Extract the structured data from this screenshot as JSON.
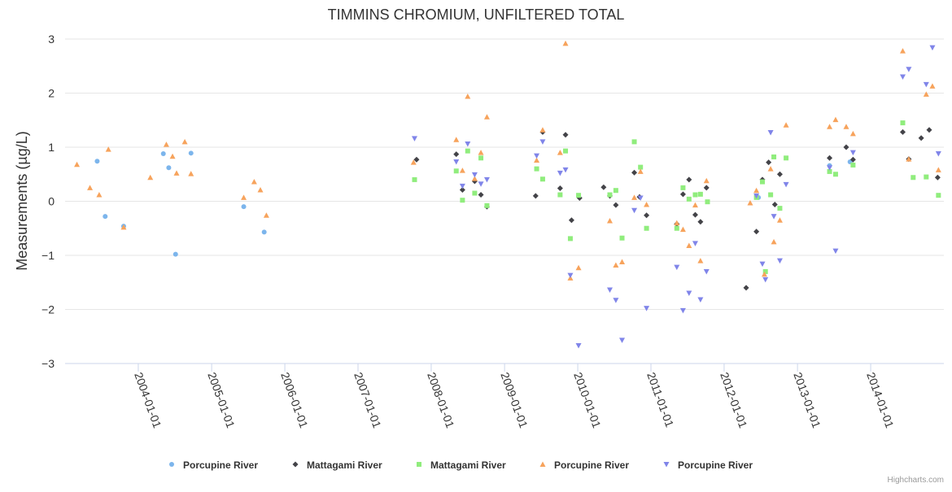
{
  "chart_data": {
    "type": "scatter",
    "title": "TIMMINS CHROMIUM, UNFILTERED TOTAL",
    "ylabel": "Measurements (µg/L)",
    "xlabel": "",
    "ylim": [
      -3,
      3
    ],
    "yticks": [
      -3,
      -2,
      -1,
      0,
      1,
      2,
      3
    ],
    "xlim": [
      "2003-01-01",
      "2015-01-01"
    ],
    "xticks": [
      "2004-01-01",
      "2005-01-01",
      "2006-01-01",
      "2007-01-01",
      "2008-01-01",
      "2009-01-01",
      "2010-01-01",
      "2011-01-01",
      "2012-01-01",
      "2013-01-01",
      "2014-01-01"
    ],
    "grid": "horizontal",
    "legend_position": "bottom-center",
    "series": [
      {
        "name": "Porcupine River",
        "marker": "circle",
        "color": "#7cb5ec",
        "points": [
          [
            "2003-06-10",
            0.74
          ],
          [
            "2003-07-20",
            -0.28
          ],
          [
            "2003-10-20",
            -0.46
          ],
          [
            "2004-05-05",
            0.88
          ],
          [
            "2004-06-01",
            0.62
          ],
          [
            "2004-07-05",
            -0.98
          ],
          [
            "2004-09-20",
            0.89
          ],
          [
            "2005-06-10",
            -0.1
          ],
          [
            "2005-09-20",
            -0.57
          ],
          [
            "2012-06-20",
            0.07
          ],
          [
            "2013-06-10",
            0.66
          ],
          [
            "2013-09-20",
            0.73
          ]
        ]
      },
      {
        "name": "Mattagami River",
        "marker": "diamond",
        "color": "#434348",
        "points": [
          [
            "2007-10-20",
            0.77
          ],
          [
            "2008-05-05",
            0.87
          ],
          [
            "2008-06-05",
            0.21
          ],
          [
            "2008-08-05",
            0.37
          ],
          [
            "2008-09-05",
            0.12
          ],
          [
            "2008-10-05",
            -0.1
          ],
          [
            "2009-06-05",
            0.1
          ],
          [
            "2009-07-10",
            1.28
          ],
          [
            "2009-10-05",
            0.24
          ],
          [
            "2009-11-01",
            1.23
          ],
          [
            "2009-12-01",
            -0.35
          ],
          [
            "2010-01-10",
            0.06
          ],
          [
            "2010-05-10",
            0.26
          ],
          [
            "2010-06-10",
            0.1
          ],
          [
            "2010-07-10",
            -0.07
          ],
          [
            "2010-10-10",
            0.53
          ],
          [
            "2010-11-05",
            0.08
          ],
          [
            "2010-12-10",
            -0.26
          ],
          [
            "2011-05-10",
            -0.42
          ],
          [
            "2011-06-10",
            0.13
          ],
          [
            "2011-07-10",
            0.4
          ],
          [
            "2011-08-10",
            -0.25
          ],
          [
            "2011-09-05",
            -0.38
          ],
          [
            "2011-10-05",
            0.25
          ],
          [
            "2012-04-20",
            -1.6
          ],
          [
            "2012-06-10",
            -0.56
          ],
          [
            "2012-07-10",
            0.4
          ],
          [
            "2012-08-10",
            0.72
          ],
          [
            "2012-09-10",
            -0.06
          ],
          [
            "2012-10-05",
            0.5
          ],
          [
            "2013-06-10",
            0.8
          ],
          [
            "2013-09-01",
            1.0
          ],
          [
            "2013-10-05",
            0.77
          ],
          [
            "2014-06-10",
            1.28
          ],
          [
            "2014-07-10",
            0.78
          ],
          [
            "2014-09-10",
            1.17
          ],
          [
            "2014-10-20",
            1.32
          ],
          [
            "2014-12-01",
            0.44
          ]
        ]
      },
      {
        "name": "Mattagami River",
        "marker": "square",
        "color": "#90ed7d",
        "points": [
          [
            "2007-10-10",
            0.4
          ],
          [
            "2008-05-05",
            0.56
          ],
          [
            "2008-06-05",
            0.02
          ],
          [
            "2008-07-01",
            0.93
          ],
          [
            "2008-08-05",
            0.15
          ],
          [
            "2008-09-05",
            0.8
          ],
          [
            "2008-10-05",
            -0.08
          ],
          [
            "2009-06-10",
            0.6
          ],
          [
            "2009-07-10",
            0.41
          ],
          [
            "2009-10-05",
            0.12
          ],
          [
            "2009-11-01",
            0.93
          ],
          [
            "2009-11-25",
            -0.69
          ],
          [
            "2010-01-05",
            0.11
          ],
          [
            "2010-06-10",
            0.12
          ],
          [
            "2010-07-10",
            0.2
          ],
          [
            "2010-08-10",
            -0.68
          ],
          [
            "2010-10-10",
            1.1
          ],
          [
            "2010-11-10",
            0.63
          ],
          [
            "2010-12-10",
            -0.5
          ],
          [
            "2011-05-10",
            -0.5
          ],
          [
            "2011-06-10",
            0.25
          ],
          [
            "2011-07-10",
            0.04
          ],
          [
            "2011-08-10",
            0.12
          ],
          [
            "2011-09-05",
            0.13
          ],
          [
            "2011-10-10",
            -0.01
          ],
          [
            "2012-06-10",
            0.07
          ],
          [
            "2012-07-10",
            0.36
          ],
          [
            "2012-07-25",
            -1.3
          ],
          [
            "2012-08-20",
            0.12
          ],
          [
            "2012-09-05",
            0.82
          ],
          [
            "2012-10-05",
            -0.13
          ],
          [
            "2012-11-05",
            0.8
          ],
          [
            "2013-06-10",
            0.55
          ],
          [
            "2013-07-10",
            0.5
          ],
          [
            "2013-10-05",
            0.67
          ],
          [
            "2014-06-10",
            1.45
          ],
          [
            "2014-08-01",
            0.44
          ],
          [
            "2014-10-05",
            0.45
          ],
          [
            "2014-12-05",
            0.11
          ]
        ]
      },
      {
        "name": "Porcupine River",
        "marker": "triangle",
        "color": "#f7a35c",
        "points": [
          [
            "2003-03-01",
            0.68
          ],
          [
            "2003-05-05",
            0.25
          ],
          [
            "2003-06-20",
            0.12
          ],
          [
            "2003-08-05",
            0.96
          ],
          [
            "2003-10-20",
            -0.48
          ],
          [
            "2004-03-01",
            0.44
          ],
          [
            "2004-05-20",
            1.05
          ],
          [
            "2004-06-20",
            0.83
          ],
          [
            "2004-07-10",
            0.52
          ],
          [
            "2004-08-20",
            1.1
          ],
          [
            "2004-09-20",
            0.51
          ],
          [
            "2005-06-10",
            0.07
          ],
          [
            "2005-08-01",
            0.36
          ],
          [
            "2005-09-01",
            0.21
          ],
          [
            "2005-10-01",
            -0.26
          ],
          [
            "2007-10-05",
            0.72
          ],
          [
            "2008-05-05",
            1.14
          ],
          [
            "2008-06-05",
            0.57
          ],
          [
            "2008-07-01",
            1.94
          ],
          [
            "2008-08-05",
            0.42
          ],
          [
            "2008-09-05",
            0.9
          ],
          [
            "2008-10-05",
            1.56
          ],
          [
            "2009-06-10",
            0.76
          ],
          [
            "2009-07-10",
            1.32
          ],
          [
            "2009-10-05",
            0.9
          ],
          [
            "2009-11-01",
            2.92
          ],
          [
            "2009-11-25",
            -1.42
          ],
          [
            "2010-01-05",
            -1.23
          ],
          [
            "2010-06-10",
            -0.36
          ],
          [
            "2010-07-10",
            -1.18
          ],
          [
            "2010-08-10",
            -1.12
          ],
          [
            "2010-10-10",
            0.07
          ],
          [
            "2010-11-10",
            0.55
          ],
          [
            "2010-12-10",
            -0.06
          ],
          [
            "2011-05-10",
            -0.4
          ],
          [
            "2011-06-10",
            -0.52
          ],
          [
            "2011-07-10",
            -0.82
          ],
          [
            "2011-08-10",
            -0.07
          ],
          [
            "2011-09-05",
            -1.1
          ],
          [
            "2011-10-05",
            0.38
          ],
          [
            "2012-05-10",
            -0.03
          ],
          [
            "2012-06-10",
            0.2
          ],
          [
            "2012-07-20",
            -1.35
          ],
          [
            "2012-08-20",
            0.6
          ],
          [
            "2012-09-05",
            -0.75
          ],
          [
            "2012-10-05",
            -0.35
          ],
          [
            "2012-11-05",
            1.41
          ],
          [
            "2013-06-10",
            1.38
          ],
          [
            "2013-07-10",
            1.51
          ],
          [
            "2013-09-01",
            1.38
          ],
          [
            "2013-10-05",
            1.25
          ],
          [
            "2014-06-10",
            2.78
          ],
          [
            "2014-07-10",
            0.78
          ],
          [
            "2014-10-05",
            1.98
          ],
          [
            "2014-11-05",
            2.13
          ],
          [
            "2014-12-05",
            0.58
          ]
        ]
      },
      {
        "name": "Porcupine River",
        "marker": "triangle-down",
        "color": "#8085e9",
        "points": [
          [
            "2007-10-10",
            1.16
          ],
          [
            "2008-05-05",
            0.73
          ],
          [
            "2008-06-05",
            0.28
          ],
          [
            "2008-07-01",
            1.06
          ],
          [
            "2008-08-05",
            0.49
          ],
          [
            "2008-09-05",
            0.32
          ],
          [
            "2008-10-05",
            0.4
          ],
          [
            "2009-06-10",
            0.84
          ],
          [
            "2009-07-10",
            1.1
          ],
          [
            "2009-10-05",
            0.52
          ],
          [
            "2009-11-01",
            0.58
          ],
          [
            "2009-11-25",
            -1.37
          ],
          [
            "2010-01-05",
            -2.67
          ],
          [
            "2010-06-10",
            -1.64
          ],
          [
            "2010-07-10",
            -1.83
          ],
          [
            "2010-08-10",
            -2.57
          ],
          [
            "2010-10-10",
            -0.17
          ],
          [
            "2010-11-10",
            0.06
          ],
          [
            "2010-12-10",
            -1.98
          ],
          [
            "2011-05-10",
            -1.22
          ],
          [
            "2011-06-10",
            -2.02
          ],
          [
            "2011-07-10",
            -1.7
          ],
          [
            "2011-08-10",
            -0.78
          ],
          [
            "2011-09-05",
            -1.82
          ],
          [
            "2011-10-05",
            -1.3
          ],
          [
            "2012-06-10",
            0.1
          ],
          [
            "2012-07-10",
            -1.16
          ],
          [
            "2012-07-25",
            -1.45
          ],
          [
            "2012-08-20",
            1.27
          ],
          [
            "2012-09-05",
            -0.28
          ],
          [
            "2012-10-05",
            -1.1
          ],
          [
            "2012-11-05",
            0.31
          ],
          [
            "2013-06-10",
            0.62
          ],
          [
            "2013-07-10",
            -0.92
          ],
          [
            "2013-10-05",
            0.9
          ],
          [
            "2014-06-10",
            2.3
          ],
          [
            "2014-07-10",
            2.44
          ],
          [
            "2014-10-05",
            2.16
          ],
          [
            "2014-11-05",
            2.84
          ],
          [
            "2014-12-05",
            0.88
          ]
        ]
      }
    ]
  },
  "credits": "Highcharts.com"
}
